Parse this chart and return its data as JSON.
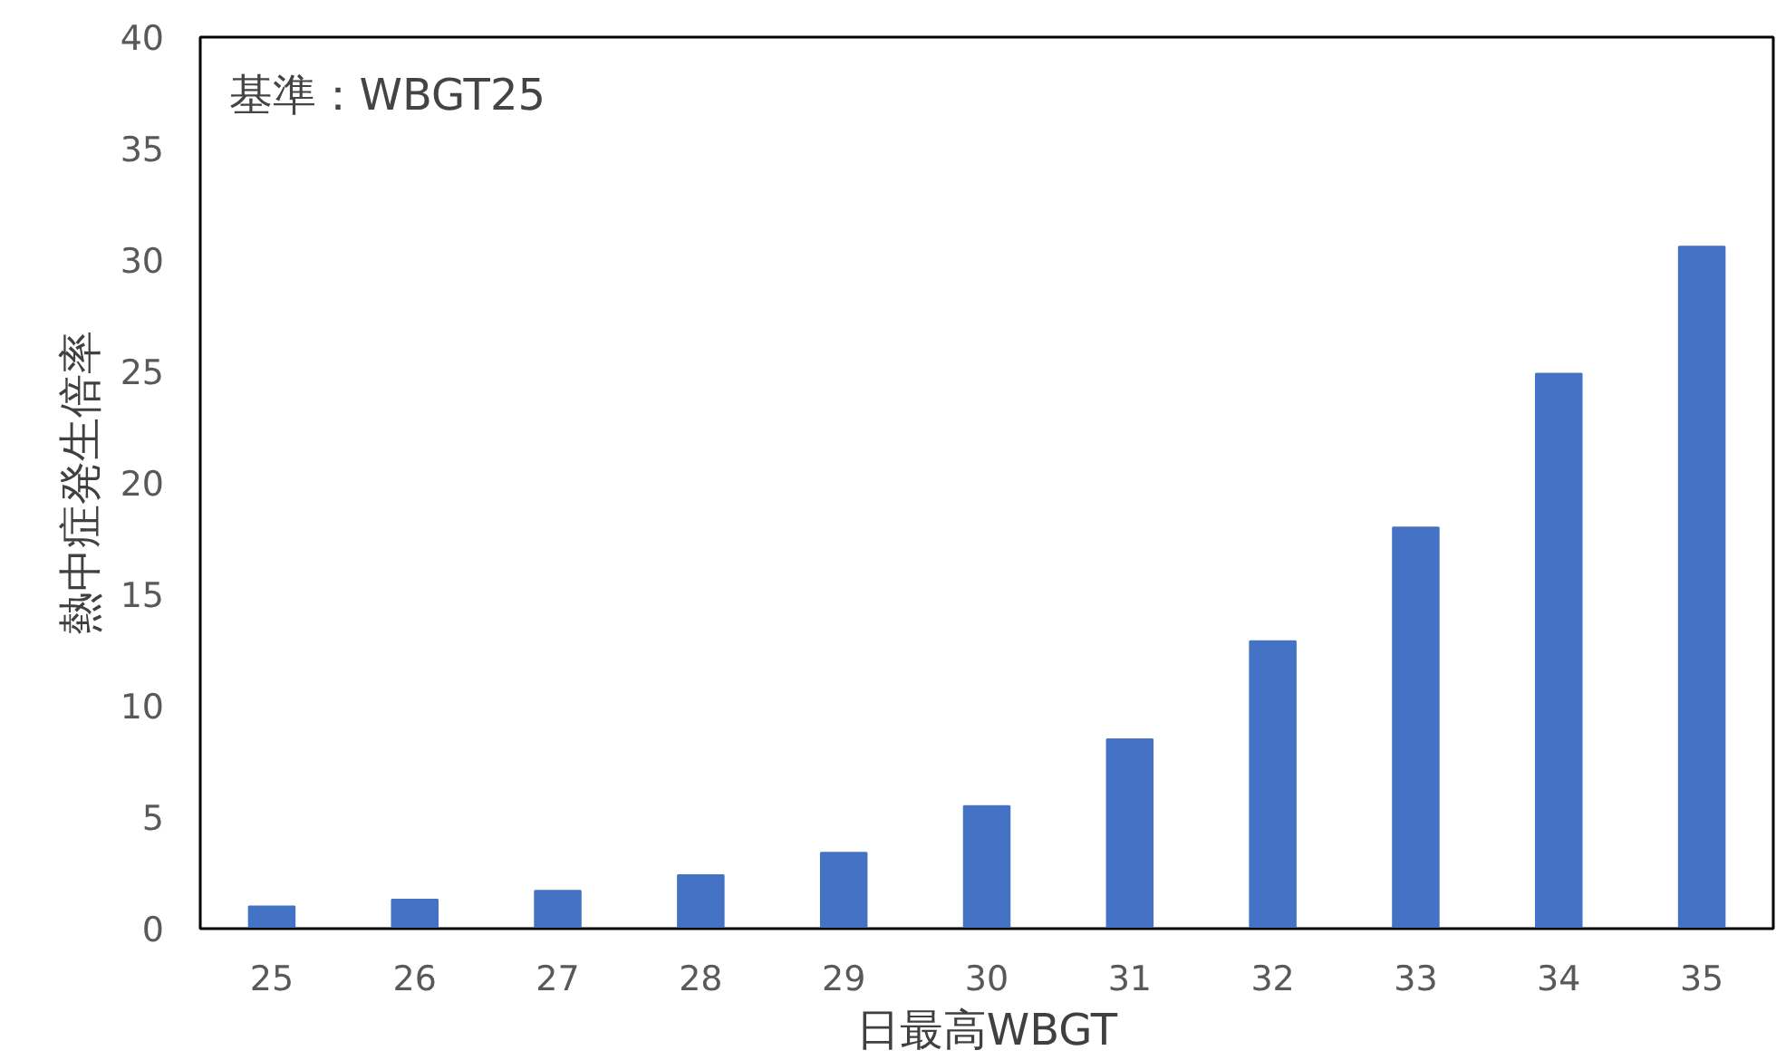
{
  "chart_data": {
    "type": "bar",
    "categories": [
      "25",
      "26",
      "27",
      "28",
      "29",
      "30",
      "31",
      "32",
      "33",
      "34",
      "35"
    ],
    "values": [
      1.0,
      1.3,
      1.7,
      2.4,
      3.4,
      5.5,
      8.5,
      12.9,
      18.0,
      24.9,
      30.6
    ],
    "color": "#4472c4",
    "xlabel": "日最高WBGT",
    "ylabel": "熱中症発生倍率",
    "annotations": [
      "基準：WBGT25"
    ],
    "ylim": [
      0,
      40
    ],
    "yticks": [
      0,
      5,
      10,
      15,
      20,
      25,
      30,
      35,
      40
    ],
    "grid": false
  }
}
